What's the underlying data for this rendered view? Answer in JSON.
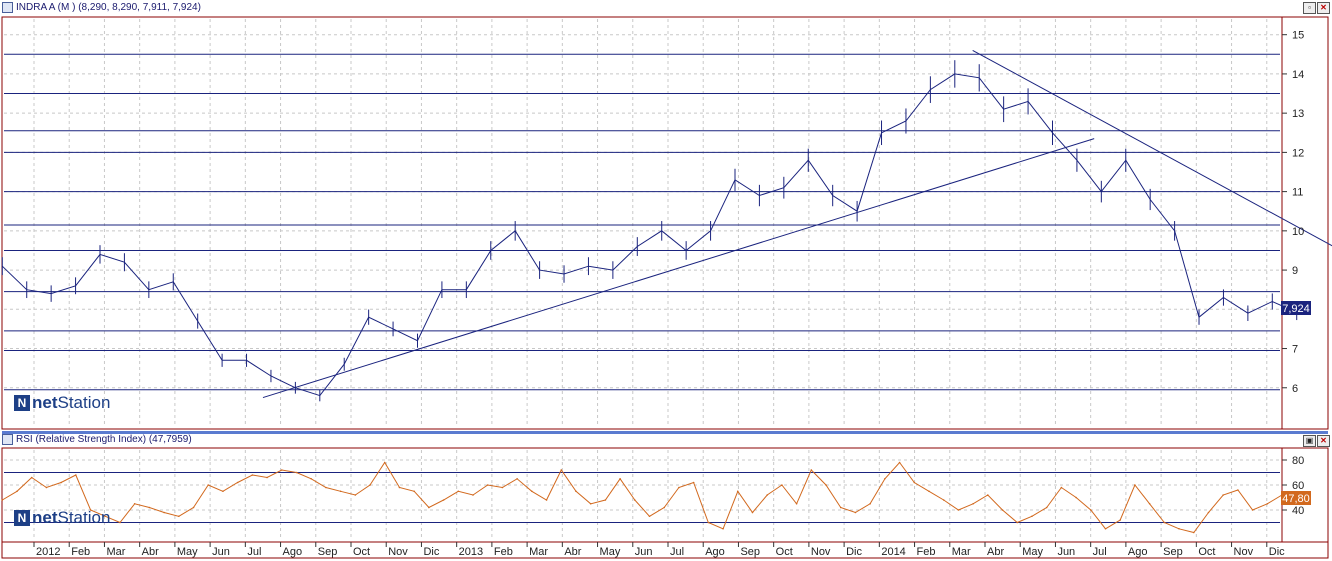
{
  "price_panel": {
    "title": "INDRA A (M ) (8,290, 8,290, 7,911, 7,924)",
    "last_label": "7,924"
  },
  "rsi_panel": {
    "title": "RSI (Relative Strength Index) (47,7959)",
    "last_label": "47,80"
  },
  "brand": {
    "bold": "net",
    "regular": "Station"
  },
  "window_buttons": {
    "minimize": "▫",
    "restore": "▣",
    "close": "✕"
  },
  "colors": {
    "price_lines": "#1a237e",
    "rsi_line": "#d2691e",
    "frame": "#8b0000",
    "label_bg": "#1a237e"
  },
  "x_axis": [
    "2012",
    "Feb",
    "Mar",
    "Abr",
    "May",
    "Jun",
    "Jul",
    "Ago",
    "Sep",
    "Oct",
    "Nov",
    "Dic",
    "2013",
    "Feb",
    "Mar",
    "Abr",
    "May",
    "Jun",
    "Jul",
    "Ago",
    "Sep",
    "Oct",
    "Nov",
    "Dic",
    "2014",
    "Feb",
    "Mar",
    "Abr",
    "May",
    "Jun",
    "Jul",
    "Ago",
    "Sep",
    "Oct",
    "Nov",
    "Dic"
  ],
  "chart_data": [
    {
      "type": "line",
      "ylim": [
        5,
        15.4
      ],
      "y_ticks": [
        6,
        7,
        8,
        9,
        10,
        11,
        12,
        13,
        14,
        15
      ],
      "horizontal_levels": [
        5.95,
        6.95,
        7.45,
        8.45,
        9.5,
        10.15,
        11.0,
        12.0,
        12.55,
        13.5,
        14.5
      ],
      "trendlines": [
        {
          "from": [
            6.5,
            5.75
          ],
          "to": [
            30.1,
            12.35
          ]
        },
        {
          "from": [
            26.65,
            14.6
          ],
          "to": [
            37.0,
            9.55
          ]
        }
      ],
      "series": [
        {
          "values": [
            9.1,
            8.5,
            8.4,
            8.6,
            9.4,
            9.2,
            8.5,
            8.7,
            7.7,
            6.7,
            6.7,
            6.3,
            6.0,
            5.8,
            6.6,
            7.8,
            7.5,
            7.2,
            8.5,
            8.5,
            9.5,
            10.0,
            9.0,
            8.9,
            9.1,
            9.0,
            9.6,
            10.0,
            9.5,
            10.0,
            11.3,
            10.9,
            11.1,
            11.8,
            10.9,
            10.5,
            12.5,
            12.8,
            13.6,
            14.0,
            13.9,
            13.1,
            13.3,
            12.5,
            11.8,
            11.0,
            11.8,
            10.8,
            10.0,
            7.8,
            8.3,
            7.9,
            8.2,
            7.924
          ]
        }
      ]
    },
    {
      "type": "line",
      "ylim": [
        16,
        88
      ],
      "y_ticks": [
        40,
        60,
        80
      ],
      "horizontal_levels": [
        30,
        70
      ],
      "series": [
        {
          "values": [
            48,
            55,
            66,
            58,
            62,
            68,
            40,
            35,
            30,
            45,
            42,
            38,
            35,
            42,
            60,
            55,
            62,
            68,
            66,
            72,
            70,
            65,
            58,
            55,
            52,
            60,
            78,
            58,
            55,
            42,
            48,
            55,
            52,
            60,
            58,
            65,
            55,
            48,
            72,
            55,
            45,
            48,
            65,
            48,
            35,
            42,
            58,
            62,
            30,
            25,
            55,
            38,
            52,
            60,
            45,
            72,
            60,
            42,
            38,
            45,
            65,
            78,
            62,
            55,
            48,
            40,
            45,
            52,
            40,
            30,
            35,
            42,
            58,
            50,
            40,
            25,
            32,
            60,
            45,
            30,
            25,
            22,
            38,
            52,
            56,
            40,
            45,
            52,
            47.8
          ]
        }
      ]
    }
  ]
}
